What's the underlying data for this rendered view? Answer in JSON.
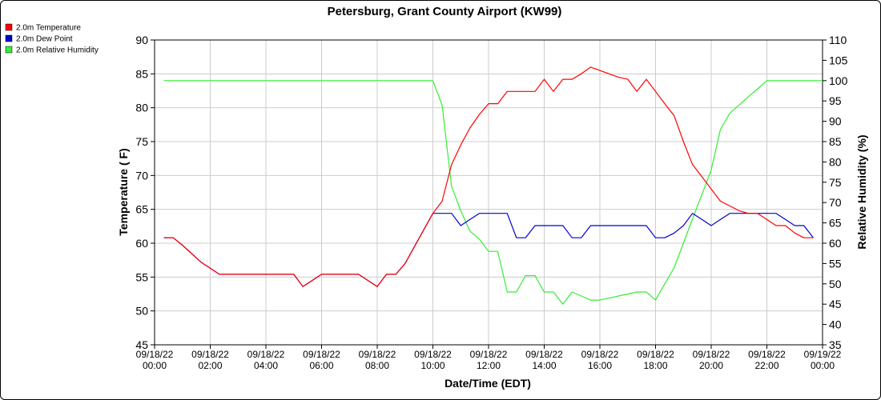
{
  "chart_data": {
    "type": "line",
    "title": "Petersburg, Grant County Airport (KW99)",
    "xlabel": "Date/Time (EDT)",
    "ylabel": "Temperature ( F)",
    "y2label": "Relative Humidity (%)",
    "ylim": [
      45,
      90
    ],
    "y2lim": [
      35,
      110
    ],
    "xlim": [
      0,
      24
    ],
    "yticks": [
      45,
      50,
      55,
      60,
      65,
      70,
      75,
      80,
      85,
      90
    ],
    "y2ticks": [
      35,
      40,
      45,
      50,
      55,
      60,
      65,
      70,
      75,
      80,
      85,
      90,
      95,
      100,
      105,
      110
    ],
    "xticks": [
      {
        "x": 0,
        "date": "09/18/22",
        "time": "00:00"
      },
      {
        "x": 2,
        "date": "09/18/22",
        "time": "02:00"
      },
      {
        "x": 4,
        "date": "09/18/22",
        "time": "04:00"
      },
      {
        "x": 6,
        "date": "09/18/22",
        "time": "06:00"
      },
      {
        "x": 8,
        "date": "09/18/22",
        "time": "08:00"
      },
      {
        "x": 10,
        "date": "09/18/22",
        "time": "10:00"
      },
      {
        "x": 12,
        "date": "09/18/22",
        "time": "12:00"
      },
      {
        "x": 14,
        "date": "09/18/22",
        "time": "14:00"
      },
      {
        "x": 16,
        "date": "09/18/22",
        "time": "16:00"
      },
      {
        "x": 18,
        "date": "09/18/22",
        "time": "18:00"
      },
      {
        "x": 20,
        "date": "09/18/22",
        "time": "20:00"
      },
      {
        "x": 22,
        "date": "09/18/22",
        "time": "22:00"
      },
      {
        "x": 24,
        "date": "09/19/22",
        "time": "00:00"
      }
    ],
    "grid": true,
    "legend_position": "top-left",
    "series": [
      {
        "name": "2.0m Temperature",
        "color": "#ff0000",
        "axis": "left",
        "x": [
          0.33,
          0.67,
          1.0,
          1.67,
          2.33,
          3.0,
          4.0,
          4.67,
          5.0,
          5.33,
          6.0,
          6.67,
          7.0,
          7.33,
          8.0,
          8.33,
          8.67,
          9.0,
          10.0,
          10.33,
          10.67,
          11.0,
          11.33,
          11.67,
          12.0,
          12.33,
          12.67,
          13.0,
          13.33,
          13.67,
          14.0,
          14.33,
          14.67,
          15.0,
          15.33,
          15.67,
          16.0,
          16.33,
          16.67,
          17.0,
          17.33,
          17.67,
          18.0,
          18.33,
          18.67,
          19.0,
          19.33,
          19.67,
          20.0,
          20.33,
          20.67,
          21.0,
          21.33,
          21.67,
          22.0,
          22.33,
          22.67,
          23.0,
          23.33,
          23.67
        ],
        "values": [
          60.8,
          60.8,
          59.7,
          57.2,
          55.4,
          55.4,
          55.4,
          55.4,
          55.4,
          53.6,
          55.4,
          55.4,
          55.4,
          55.4,
          53.6,
          55.4,
          55.4,
          57.0,
          64.4,
          66.2,
          71.6,
          74.5,
          77.0,
          79.0,
          80.6,
          80.6,
          82.4,
          82.4,
          82.4,
          82.4,
          84.2,
          82.4,
          84.2,
          84.2,
          85.0,
          86.0,
          85.5,
          85.0,
          84.5,
          84.2,
          82.4,
          84.2,
          82.4,
          80.6,
          78.8,
          75.0,
          71.6,
          69.8,
          68.0,
          66.2,
          65.5,
          64.8,
          64.4,
          64.4,
          63.5,
          62.6,
          62.6,
          61.5,
          60.8,
          60.8
        ]
      },
      {
        "name": "2.0m Dew Point",
        "color": "#0000cc",
        "axis": "left",
        "x": [
          0.33,
          0.67,
          1.0,
          1.67,
          2.33,
          3.0,
          4.0,
          4.67,
          5.0,
          5.33,
          6.0,
          6.67,
          7.0,
          7.33,
          8.0,
          8.33,
          8.67,
          9.0,
          10.0,
          10.33,
          10.67,
          11.0,
          11.33,
          11.67,
          12.0,
          12.33,
          12.67,
          13.0,
          13.33,
          13.67,
          14.0,
          14.33,
          14.67,
          15.0,
          15.33,
          15.67,
          16.0,
          16.33,
          16.67,
          17.0,
          17.33,
          17.67,
          18.0,
          18.33,
          18.67,
          19.0,
          19.33,
          19.67,
          20.0,
          20.33,
          20.67,
          21.0,
          21.33,
          21.67,
          22.0,
          22.33,
          22.67,
          23.0,
          23.33,
          23.67
        ],
        "values": [
          60.8,
          60.8,
          59.7,
          57.2,
          55.4,
          55.4,
          55.4,
          55.4,
          55.4,
          53.6,
          55.4,
          55.4,
          55.4,
          55.4,
          53.6,
          55.4,
          55.4,
          57.0,
          64.4,
          64.4,
          64.4,
          62.6,
          63.5,
          64.4,
          64.4,
          64.4,
          64.4,
          60.8,
          60.8,
          62.6,
          62.6,
          62.6,
          62.6,
          60.8,
          60.8,
          62.6,
          62.6,
          62.6,
          62.6,
          62.6,
          62.6,
          62.6,
          60.8,
          60.8,
          61.5,
          62.6,
          64.4,
          63.5,
          62.6,
          63.5,
          64.4,
          64.4,
          64.4,
          64.4,
          64.4,
          64.4,
          63.5,
          62.6,
          62.6,
          60.8
        ]
      },
      {
        "name": "2.0m Relative Humidity",
        "color": "#33ee33",
        "axis": "right",
        "x": [
          0.33,
          10.0,
          10.33,
          10.67,
          11.0,
          11.33,
          11.67,
          12.0,
          12.33,
          12.67,
          13.0,
          13.33,
          13.67,
          14.0,
          14.33,
          14.67,
          15.0,
          15.33,
          15.67,
          16.0,
          16.33,
          16.67,
          17.0,
          17.33,
          17.67,
          18.0,
          18.33,
          18.67,
          19.0,
          19.33,
          19.67,
          20.0,
          20.33,
          20.67,
          21.0,
          21.33,
          21.67,
          22.0,
          22.33,
          22.67,
          23.0,
          23.33,
          23.67,
          24.0
        ],
        "values": [
          100,
          100,
          94,
          74,
          68,
          63,
          61,
          58,
          58,
          48,
          48,
          52,
          52,
          48,
          48,
          45,
          48,
          47,
          46,
          46,
          46.5,
          47,
          47.5,
          48,
          48,
          46,
          50,
          54,
          60,
          66,
          72,
          78,
          88,
          92,
          94,
          96,
          98,
          100,
          100,
          100,
          100,
          100,
          100,
          100
        ]
      }
    ]
  }
}
